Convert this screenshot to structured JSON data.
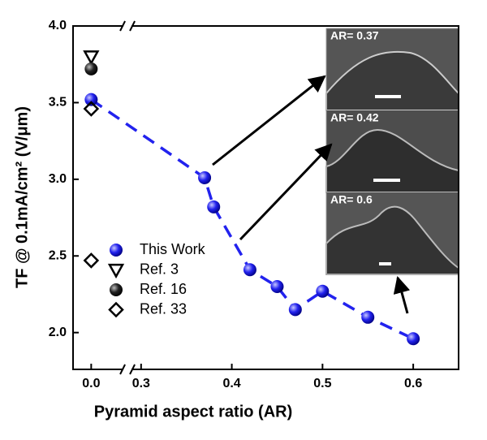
{
  "chart_data": {
    "type": "scatter",
    "x_label": "Pyramid aspect ratio (AR)",
    "y_label": "TF @ 0.1mA/cm² (V/μm)",
    "x_segments": [
      [
        -0.02,
        0.04
      ],
      [
        0.285,
        0.65
      ]
    ],
    "ylim": [
      1.76,
      4.0
    ],
    "xticks": [
      {
        "value": 0,
        "label": "0.0"
      },
      0.3,
      0.4,
      0.5,
      0.6
    ],
    "yticks": [
      {
        "value": 2,
        "label": "2.0"
      },
      2.5,
      {
        "value": 3,
        "label": "3.0"
      },
      3.5,
      {
        "value": 4,
        "label": "4.0"
      }
    ],
    "series": [
      {
        "name": "This Work",
        "color": "#2222ee",
        "marker": "sphere",
        "line_style": "dashed",
        "x": [
          0.0,
          0.37,
          0.38,
          0.42,
          0.45,
          0.47,
          0.5,
          0.55,
          0.6
        ],
        "values": [
          3.52,
          3.01,
          2.82,
          2.41,
          2.3,
          2.15,
          2.27,
          2.1,
          1.96
        ]
      },
      {
        "name": "Ref. 3",
        "color": "#000000",
        "marker": "triangle-down",
        "x": [
          0.0
        ],
        "values": [
          3.8
        ]
      },
      {
        "name": "Ref. 16",
        "color": "#000000",
        "marker": "sphere",
        "x": [
          0.0
        ],
        "values": [
          3.72
        ]
      },
      {
        "name": "Ref. 33",
        "color": "#000000",
        "marker": "diamond",
        "x": [
          0.0,
          0.0
        ],
        "values": [
          3.46,
          2.47
        ]
      }
    ],
    "insets": [
      {
        "label": "AR= 0.37"
      },
      {
        "label": "AR= 0.42"
      },
      {
        "label": "AR= 0.6"
      }
    ]
  }
}
